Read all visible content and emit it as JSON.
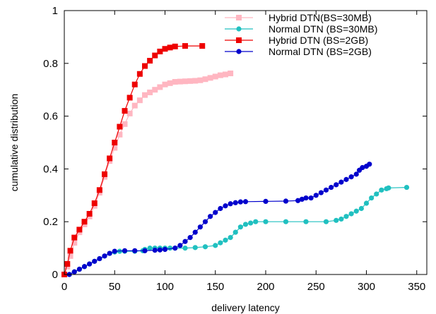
{
  "chart_data": {
    "type": "line",
    "title": "",
    "xlabel": "delivery latency",
    "ylabel": "cumulative distribution",
    "xlim": [
      0,
      360
    ],
    "ylim": [
      0,
      1
    ],
    "xticks": [
      0,
      50,
      100,
      150,
      200,
      250,
      300,
      350
    ],
    "yticks": [
      0,
      0.2,
      0.4,
      0.6,
      0.8,
      1
    ],
    "ytick_labels": [
      "0",
      "0.2",
      "0.4",
      "0.6",
      "0.8",
      "1"
    ],
    "grid": false,
    "legend_position": "top-right",
    "series": [
      {
        "name": "Hybrid DTN(BS=30MB)",
        "color": "#ffb6c1",
        "marker": "square",
        "points": [
          [
            0,
            0
          ],
          [
            3,
            0.03
          ],
          [
            6,
            0.07
          ],
          [
            10,
            0.12
          ],
          [
            15,
            0.16
          ],
          [
            20,
            0.19
          ],
          [
            25,
            0.22
          ],
          [
            30,
            0.26
          ],
          [
            35,
            0.31
          ],
          [
            40,
            0.37
          ],
          [
            45,
            0.43
          ],
          [
            50,
            0.48
          ],
          [
            55,
            0.53
          ],
          [
            60,
            0.57
          ],
          [
            65,
            0.61
          ],
          [
            70,
            0.64
          ],
          [
            75,
            0.66
          ],
          [
            80,
            0.68
          ],
          [
            85,
            0.69
          ],
          [
            90,
            0.7
          ],
          [
            95,
            0.71
          ],
          [
            100,
            0.72
          ],
          [
            105,
            0.725
          ],
          [
            110,
            0.73
          ],
          [
            115,
            0.731
          ],
          [
            120,
            0.732
          ],
          [
            125,
            0.733
          ],
          [
            130,
            0.734
          ],
          [
            135,
            0.736
          ],
          [
            140,
            0.74
          ],
          [
            145,
            0.745
          ],
          [
            150,
            0.75
          ],
          [
            155,
            0.755
          ],
          [
            160,
            0.758
          ],
          [
            165,
            0.762
          ]
        ]
      },
      {
        "name": "Normal DTN (BS=30MB)",
        "color": "#20c0c0",
        "marker": "circle",
        "points": [
          [
            5,
            0
          ],
          [
            10,
            0.01
          ],
          [
            15,
            0.02
          ],
          [
            20,
            0.03
          ],
          [
            25,
            0.04
          ],
          [
            30,
            0.05
          ],
          [
            35,
            0.06
          ],
          [
            40,
            0.07
          ],
          [
            45,
            0.08
          ],
          [
            50,
            0.085
          ],
          [
            55,
            0.088
          ],
          [
            60,
            0.088
          ],
          [
            70,
            0.088
          ],
          [
            78,
            0.09
          ],
          [
            80,
            0.095
          ],
          [
            85,
            0.1
          ],
          [
            90,
            0.1
          ],
          [
            95,
            0.1
          ],
          [
            100,
            0.1
          ],
          [
            105,
            0.1
          ],
          [
            110,
            0.1
          ],
          [
            120,
            0.1
          ],
          [
            130,
            0.102
          ],
          [
            140,
            0.105
          ],
          [
            150,
            0.11
          ],
          [
            155,
            0.12
          ],
          [
            160,
            0.13
          ],
          [
            165,
            0.14
          ],
          [
            170,
            0.16
          ],
          [
            175,
            0.18
          ],
          [
            180,
            0.19
          ],
          [
            185,
            0.195
          ],
          [
            190,
            0.2
          ],
          [
            200,
            0.2
          ],
          [
            220,
            0.2
          ],
          [
            240,
            0.2
          ],
          [
            260,
            0.2
          ],
          [
            270,
            0.205
          ],
          [
            275,
            0.21
          ],
          [
            280,
            0.22
          ],
          [
            285,
            0.23
          ],
          [
            290,
            0.24
          ],
          [
            295,
            0.25
          ],
          [
            300,
            0.27
          ],
          [
            305,
            0.29
          ],
          [
            310,
            0.305
          ],
          [
            315,
            0.32
          ],
          [
            320,
            0.325
          ],
          [
            322,
            0.328
          ],
          [
            340,
            0.33
          ]
        ]
      },
      {
        "name": "Hybrid DTN (BS=2GB)",
        "color": "#ee0000",
        "marker": "square",
        "points": [
          [
            0,
            0
          ],
          [
            3,
            0.04
          ],
          [
            6,
            0.09
          ],
          [
            10,
            0.14
          ],
          [
            15,
            0.17
          ],
          [
            20,
            0.2
          ],
          [
            25,
            0.23
          ],
          [
            30,
            0.27
          ],
          [
            35,
            0.32
          ],
          [
            40,
            0.38
          ],
          [
            45,
            0.44
          ],
          [
            50,
            0.5
          ],
          [
            55,
            0.56
          ],
          [
            60,
            0.62
          ],
          [
            65,
            0.67
          ],
          [
            70,
            0.72
          ],
          [
            75,
            0.76
          ],
          [
            80,
            0.79
          ],
          [
            85,
            0.81
          ],
          [
            90,
            0.83
          ],
          [
            95,
            0.845
          ],
          [
            100,
            0.855
          ],
          [
            105,
            0.86
          ],
          [
            110,
            0.864
          ],
          [
            120,
            0.866
          ],
          [
            137,
            0.866
          ]
        ]
      },
      {
        "name": "Normal DTN (BS=2GB)",
        "color": "#0000cc",
        "marker": "circle",
        "points": [
          [
            5,
            0
          ],
          [
            10,
            0.01
          ],
          [
            15,
            0.02
          ],
          [
            20,
            0.03
          ],
          [
            25,
            0.04
          ],
          [
            30,
            0.05
          ],
          [
            35,
            0.06
          ],
          [
            40,
            0.07
          ],
          [
            45,
            0.08
          ],
          [
            50,
            0.088
          ],
          [
            60,
            0.09
          ],
          [
            70,
            0.09
          ],
          [
            80,
            0.09
          ],
          [
            90,
            0.092
          ],
          [
            95,
            0.093
          ],
          [
            100,
            0.095
          ],
          [
            110,
            0.1
          ],
          [
            115,
            0.11
          ],
          [
            120,
            0.125
          ],
          [
            125,
            0.14
          ],
          [
            130,
            0.16
          ],
          [
            135,
            0.18
          ],
          [
            140,
            0.2
          ],
          [
            145,
            0.22
          ],
          [
            150,
            0.235
          ],
          [
            155,
            0.25
          ],
          [
            160,
            0.26
          ],
          [
            165,
            0.268
          ],
          [
            170,
            0.272
          ],
          [
            175,
            0.275
          ],
          [
            180,
            0.276
          ],
          [
            200,
            0.277
          ],
          [
            220,
            0.278
          ],
          [
            232,
            0.28
          ],
          [
            236,
            0.285
          ],
          [
            240,
            0.29
          ],
          [
            245,
            0.29
          ],
          [
            250,
            0.3
          ],
          [
            255,
            0.31
          ],
          [
            260,
            0.32
          ],
          [
            265,
            0.33
          ],
          [
            270,
            0.34
          ],
          [
            275,
            0.35
          ],
          [
            280,
            0.36
          ],
          [
            285,
            0.37
          ],
          [
            290,
            0.38
          ],
          [
            293,
            0.395
          ],
          [
            296,
            0.405
          ],
          [
            300,
            0.41
          ],
          [
            303,
            0.418
          ]
        ]
      }
    ]
  }
}
